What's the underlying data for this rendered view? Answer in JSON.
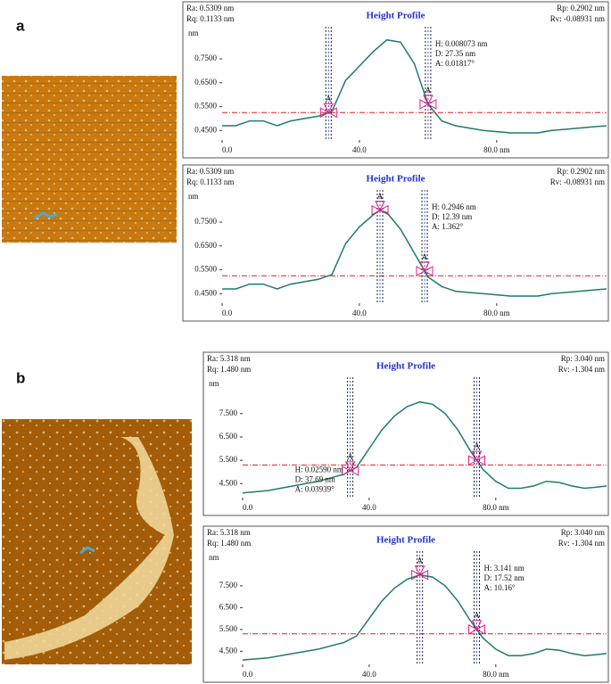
{
  "panel_labels": [
    "a",
    "b"
  ],
  "chart_data": [
    {
      "type": "line",
      "title": "Height Profile",
      "stats_left": [
        "Ra: 0.5309 nm",
        "Rq: 0.1133 nm"
      ],
      "stats_right": [
        "Rp: 0.2902 nm",
        "Rv: -0.08931 nm"
      ],
      "ylabel": "nm",
      "color": "#1f7a70",
      "x": [
        0,
        4,
        8,
        12,
        16,
        20,
        24,
        28,
        30,
        32,
        36,
        40,
        44,
        48,
        52,
        56,
        60,
        64,
        68,
        72,
        76,
        80,
        84,
        88,
        92,
        96,
        100,
        104,
        108,
        112
      ],
      "values": [
        0.47,
        0.47,
        0.49,
        0.49,
        0.47,
        0.49,
        0.5,
        0.51,
        0.52,
        0.53,
        0.66,
        0.72,
        0.78,
        0.83,
        0.82,
        0.73,
        0.56,
        0.49,
        0.47,
        0.46,
        0.45,
        0.445,
        0.44,
        0.44,
        0.44,
        0.45,
        0.455,
        0.46,
        0.465,
        0.47
      ],
      "xlim": [
        0,
        112
      ],
      "ylim": [
        0.41,
        0.84
      ],
      "xticks": [
        {
          "value": 0,
          "label": "0.0"
        },
        {
          "value": 40,
          "label": "40.0"
        },
        {
          "value": 80,
          "label": "80.0 nm"
        }
      ],
      "yticks": [
        {
          "value": 0.45,
          "label": "0.4500"
        },
        {
          "value": 0.55,
          "label": "0.5500"
        },
        {
          "value": 0.65,
          "label": "0.6500"
        },
        {
          "value": 0.75,
          "label": "0.7500"
        }
      ],
      "ref_line": 0.525,
      "ref_color": "#e02020",
      "cursors": [
        31,
        60
      ],
      "cursor_label": "A",
      "annotations": [
        "H: 0.008073 nm",
        "D: 27.35 nm",
        "A: 0.01817°"
      ]
    },
    {
      "type": "line",
      "title": "Height Profile",
      "stats_left": [
        "Ra: 0.5309 nm",
        "Rq: 0.1133 nm"
      ],
      "stats_right": [
        "Rp: 0.2902 nm",
        "Rv: -0.08931 nm"
      ],
      "ylabel": "nm",
      "color": "#1f7a70",
      "x": [
        0,
        4,
        8,
        12,
        16,
        20,
        24,
        28,
        32,
        36,
        40,
        44,
        46,
        48,
        52,
        56,
        60,
        64,
        68,
        72,
        76,
        80,
        84,
        88,
        92,
        96,
        100,
        104,
        108,
        112
      ],
      "values": [
        0.47,
        0.47,
        0.49,
        0.49,
        0.47,
        0.49,
        0.5,
        0.51,
        0.53,
        0.66,
        0.73,
        0.78,
        0.8,
        0.79,
        0.72,
        0.62,
        0.52,
        0.48,
        0.46,
        0.455,
        0.45,
        0.445,
        0.44,
        0.44,
        0.44,
        0.45,
        0.455,
        0.46,
        0.465,
        0.47
      ],
      "xlim": [
        0,
        112
      ],
      "ylim": [
        0.41,
        0.84
      ],
      "xticks": [
        {
          "value": 0,
          "label": "0.0"
        },
        {
          "value": 40,
          "label": "40.0"
        },
        {
          "value": 80,
          "label": "80.0 nm"
        }
      ],
      "yticks": [
        {
          "value": 0.45,
          "label": "0.4500"
        },
        {
          "value": 0.55,
          "label": "0.5500"
        },
        {
          "value": 0.65,
          "label": "0.6500"
        },
        {
          "value": 0.75,
          "label": "0.7500"
        }
      ],
      "ref_line": 0.525,
      "ref_color": "#e02020",
      "cursors": [
        46,
        59
      ],
      "cursor_label": "A",
      "annotations": [
        "H: 0.2946 nm",
        "D: 12.39 nm",
        "A: 1.362°"
      ]
    },
    {
      "type": "line",
      "title": "Height Profile",
      "stats_left": [
        "Ra: 5.318 nm",
        "Rq: 1.480 nm"
      ],
      "stats_right": [
        "Rp: 3.040 nm",
        "Rv: -1.304 nm"
      ],
      "ylabel": "nm",
      "color": "#1f7a70",
      "x": [
        0,
        8,
        16,
        24,
        32,
        36,
        40,
        44,
        48,
        52,
        56,
        60,
        64,
        68,
        72,
        76,
        80,
        84,
        88,
        92,
        96,
        100,
        104,
        108,
        112,
        115
      ],
      "values": [
        4.1,
        4.2,
        4.4,
        4.6,
        4.9,
        5.2,
        6.0,
        6.8,
        7.4,
        7.8,
        8.0,
        7.9,
        7.5,
        6.8,
        5.9,
        5.1,
        4.6,
        4.3,
        4.3,
        4.4,
        4.6,
        4.55,
        4.4,
        4.3,
        4.35,
        4.4
      ],
      "xlim": [
        0,
        115
      ],
      "ylim": [
        3.9,
        8.6
      ],
      "xticks": [
        {
          "value": 0,
          "label": "0.0"
        },
        {
          "value": 40,
          "label": "40.0"
        },
        {
          "value": 80,
          "label": "80.0 nm"
        }
      ],
      "yticks": [
        {
          "value": 4.5,
          "label": "4.500"
        },
        {
          "value": 5.5,
          "label": "5.500"
        },
        {
          "value": 6.5,
          "label": "6.500"
        },
        {
          "value": 7.5,
          "label": "7.500"
        }
      ],
      "ref_line": 5.3,
      "ref_color": "#e02020",
      "cursors": [
        34,
        74
      ],
      "cursor_label": "A",
      "annotations": [
        "H: 0.02590 nm",
        "D: 37.69 nm",
        "A: 0.03939°"
      ]
    },
    {
      "type": "line",
      "title": "Height Profile",
      "stats_left": [
        "Ra: 5.318 nm",
        "Rq: 1.480 nm"
      ],
      "stats_right": [
        "Rp: 3.040 nm",
        "Rv: -1.304 nm"
      ],
      "ylabel": "nm",
      "color": "#1f7a70",
      "x": [
        0,
        8,
        16,
        24,
        32,
        36,
        40,
        44,
        48,
        52,
        56,
        60,
        64,
        68,
        72,
        76,
        80,
        84,
        88,
        92,
        96,
        100,
        104,
        108,
        112,
        115
      ],
      "values": [
        4.1,
        4.2,
        4.4,
        4.6,
        4.9,
        5.2,
        6.0,
        6.8,
        7.4,
        7.8,
        8.0,
        7.9,
        7.5,
        6.8,
        5.9,
        5.1,
        4.6,
        4.3,
        4.3,
        4.4,
        4.6,
        4.55,
        4.4,
        4.3,
        4.35,
        4.4
      ],
      "xlim": [
        0,
        115
      ],
      "ylim": [
        3.9,
        8.6
      ],
      "xticks": [
        {
          "value": 0,
          "label": "0.0"
        },
        {
          "value": 40,
          "label": "40.0"
        },
        {
          "value": 80,
          "label": "80.0 nm"
        }
      ],
      "yticks": [
        {
          "value": 4.5,
          "label": "4.500"
        },
        {
          "value": 5.5,
          "label": "5.500"
        },
        {
          "value": 6.5,
          "label": "6.500"
        },
        {
          "value": 7.5,
          "label": "7.500"
        }
      ],
      "ref_line": 5.3,
      "ref_color": "#e02020",
      "cursors": [
        56,
        74
      ],
      "cursor_label": "A",
      "annotations": [
        "H: 3.141 nm",
        "D: 17.52 nm",
        "A: 10.16°"
      ]
    }
  ]
}
